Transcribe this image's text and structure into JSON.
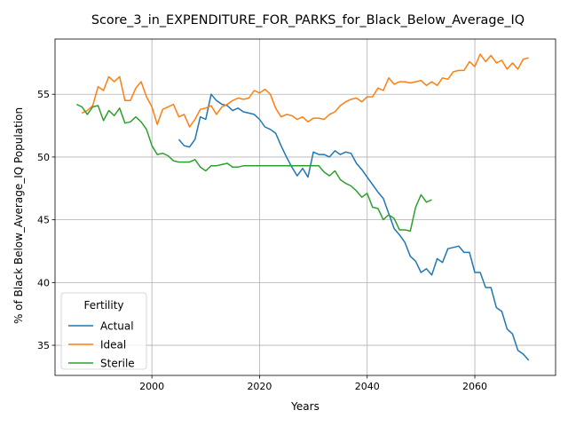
{
  "chart_data": {
    "type": "line",
    "title": "Score_3_in_EXPENDITURE_FOR_PARKS_for_Black_Below_Average_IQ",
    "xlabel": "Years",
    "ylabel": "% of Black Below_Average_IQ Population",
    "xlim": [
      1982,
      2075
    ],
    "ylim": [
      32.6,
      59.4
    ],
    "xticks": [
      2000,
      2020,
      2040,
      2060
    ],
    "yticks": [
      35,
      40,
      45,
      50,
      55
    ],
    "grid": true,
    "legend": {
      "title": "Fertility",
      "placement": "lower-left"
    },
    "series": [
      {
        "name": "Actual",
        "color": "#1f77b4",
        "x": [
          2005,
          2006,
          2007,
          2008,
          2009,
          2010,
          2011,
          2012,
          2013,
          2014,
          2015,
          2016,
          2017,
          2018,
          2019,
          2020,
          2021,
          2022,
          2023,
          2024,
          2025,
          2026,
          2027,
          2028,
          2029,
          2030,
          2031,
          2032,
          2033,
          2034,
          2035,
          2036,
          2037,
          2038,
          2039,
          2040,
          2041,
          2042,
          2043,
          2044,
          2045,
          2046,
          2047,
          2048,
          2049,
          2050,
          2051,
          2052,
          2053,
          2054,
          2055,
          2056,
          2057,
          2058,
          2059,
          2060,
          2061,
          2062,
          2063,
          2064,
          2065,
          2066,
          2067,
          2068,
          2069,
          2070
        ],
        "y": [
          51.4,
          50.9,
          50.8,
          51.4,
          53.2,
          53.0,
          55.0,
          54.5,
          54.2,
          54.1,
          53.7,
          53.9,
          53.6,
          53.5,
          53.4,
          53.0,
          52.4,
          52.2,
          51.9,
          50.9,
          50.0,
          49.2,
          48.5,
          49.1,
          48.4,
          50.4,
          50.2,
          50.2,
          50.0,
          50.5,
          50.2,
          50.4,
          50.3,
          49.5,
          49.0,
          48.4,
          47.8,
          47.2,
          46.7,
          45.5,
          44.3,
          43.8,
          43.2,
          42.1,
          41.7,
          40.8,
          41.1,
          40.6,
          41.9,
          41.6,
          42.7,
          42.8,
          42.9,
          42.4,
          42.4,
          40.8,
          40.8,
          39.6,
          39.6,
          38.0,
          37.7,
          36.3,
          35.9,
          34.6,
          34.3,
          33.8
        ]
      },
      {
        "name": "Ideal",
        "color": "#ff7f0e",
        "x": [
          1987,
          1988,
          1989,
          1990,
          1991,
          1992,
          1993,
          1994,
          1995,
          1996,
          1997,
          1998,
          1999,
          2000,
          2001,
          2002,
          2003,
          2004,
          2005,
          2006,
          2007,
          2008,
          2009,
          2010,
          2011,
          2012,
          2013,
          2014,
          2015,
          2016,
          2017,
          2018,
          2019,
          2020,
          2021,
          2022,
          2023,
          2024,
          2025,
          2026,
          2027,
          2028,
          2029,
          2030,
          2031,
          2032,
          2033,
          2034,
          2035,
          2036,
          2037,
          2038,
          2039,
          2040,
          2041,
          2042,
          2043,
          2044,
          2045,
          2046,
          2047,
          2048,
          2049,
          2050,
          2051,
          2052,
          2053,
          2054,
          2055,
          2056,
          2057,
          2058,
          2059,
          2060,
          2061,
          2062,
          2063,
          2064,
          2065,
          2066,
          2067,
          2068,
          2069,
          2070
        ],
        "y": [
          53.5,
          53.7,
          54.1,
          55.6,
          55.3,
          56.4,
          56.0,
          56.4,
          54.5,
          54.5,
          55.5,
          56.0,
          54.8,
          54.0,
          52.6,
          53.8,
          54.0,
          54.2,
          53.2,
          53.4,
          52.4,
          53.0,
          53.8,
          53.9,
          54.1,
          53.4,
          54.0,
          54.2,
          54.5,
          54.7,
          54.6,
          54.7,
          55.3,
          55.1,
          55.4,
          55.0,
          53.9,
          53.2,
          53.4,
          53.3,
          53.0,
          53.2,
          52.8,
          53.1,
          53.1,
          53.0,
          53.4,
          53.6,
          54.1,
          54.4,
          54.6,
          54.7,
          54.4,
          54.8,
          54.8,
          55.5,
          55.3,
          56.3,
          55.8,
          56.0,
          56.0,
          55.9,
          56.0,
          56.1,
          55.7,
          56.0,
          55.7,
          56.3,
          56.2,
          56.8,
          56.9,
          56.9,
          57.6,
          57.2,
          58.2,
          57.6,
          58.1,
          57.5,
          57.7,
          57.0,
          57.5,
          57.0,
          57.8,
          57.9
        ]
      },
      {
        "name": "Sterile",
        "color": "#2ca02c",
        "x": [
          1986,
          1987,
          1988,
          1989,
          1990,
          1991,
          1992,
          1993,
          1994,
          1995,
          1996,
          1997,
          1998,
          1999,
          2000,
          2001,
          2002,
          2003,
          2004,
          2005,
          2006,
          2007,
          2008,
          2009,
          2010,
          2011,
          2012,
          2013,
          2014,
          2015,
          2016,
          2017,
          2018,
          2019,
          2020,
          2021,
          2022,
          2023,
          2024,
          2025,
          2026,
          2027,
          2028,
          2029,
          2030,
          2031,
          2032,
          2033,
          2034,
          2035,
          2036,
          2037,
          2038,
          2039,
          2040,
          2041,
          2042,
          2043,
          2044,
          2045,
          2046,
          2047,
          2048,
          2049,
          2050,
          2051,
          2052
        ],
        "y": [
          54.2,
          54.0,
          53.4,
          54.0,
          54.1,
          52.9,
          53.7,
          53.3,
          53.9,
          52.7,
          52.8,
          53.2,
          52.8,
          52.2,
          50.9,
          50.2,
          50.3,
          50.1,
          49.7,
          49.6,
          49.6,
          49.6,
          49.8,
          49.2,
          48.9,
          49.3,
          49.3,
          49.4,
          49.5,
          49.2,
          49.2,
          49.3,
          49.3,
          49.3,
          49.3,
          49.3,
          49.3,
          49.3,
          49.3,
          49.3,
          49.3,
          49.3,
          49.3,
          49.3,
          49.3,
          49.3,
          48.8,
          48.5,
          48.9,
          48.2,
          47.9,
          47.7,
          47.3,
          46.8,
          47.1,
          46.0,
          45.9,
          45.0,
          45.4,
          45.1,
          44.2,
          44.2,
          44.1,
          46.0,
          47.0,
          46.4,
          46.6
        ]
      }
    ]
  }
}
